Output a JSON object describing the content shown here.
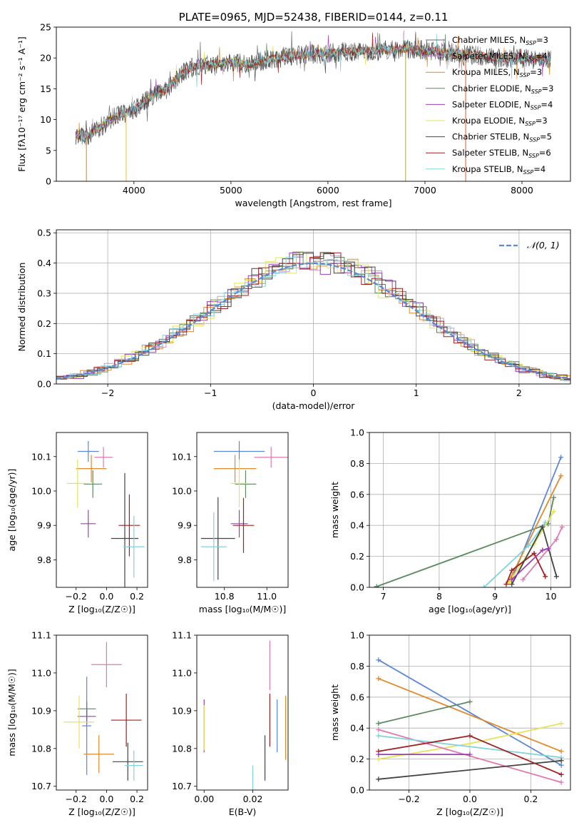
{
  "chart_data": [
    {
      "id": "spectrum",
      "type": "line",
      "title": "PLATE=0965, MJD=52438, FIBERID=0144, z=0.11",
      "xlabel": "wavelength [Angstrom, rest frame]",
      "ylabel": "Flux [fλ10⁻¹⁷ erg cm⁻² s⁻¹ A⁻¹]",
      "xlim": [
        3200,
        8500
      ],
      "ylim": [
        0,
        25
      ],
      "xticks": [
        4000,
        5000,
        6000,
        7000,
        8000
      ],
      "yticks": [
        0,
        5,
        10,
        15,
        20,
        25
      ],
      "legend": "right",
      "series": [
        {
          "name": "Chabrier MILES, N",
          "sub": "SSP",
          "suffix": "=3",
          "color": "#6b6b6b"
        },
        {
          "name": "Salpeter MILES, N",
          "sub": "SSP",
          "suffix": "=4",
          "color": "#c89ad2"
        },
        {
          "name": "Kroupa MILES, N",
          "sub": "SSP",
          "suffix": "=3",
          "color": "#e08a2c"
        },
        {
          "name": "Chabrier ELODIE, N",
          "sub": "SSP",
          "suffix": "=3",
          "color": "#5a8a5e"
        },
        {
          "name": "Salpeter ELODIE, N",
          "sub": "SSP",
          "suffix": "=4",
          "color": "#9b3fb5"
        },
        {
          "name": "Kroupa ELODIE, N",
          "sub": "SSP",
          "suffix": "=3",
          "color": "#e6e35a"
        },
        {
          "name": "Chabrier STELIB, N",
          "sub": "SSP",
          "suffix": "=5",
          "color": "#444444"
        },
        {
          "name": "Salpeter STELIB, N",
          "sub": "SSP",
          "suffix": "=6",
          "color": "#a31f1f"
        },
        {
          "name": "Kroupa STELIB, N",
          "sub": "SSP",
          "suffix": "=4",
          "color": "#7fd3dc"
        }
      ],
      "profile": [
        [
          3400,
          7.5
        ],
        [
          3500,
          7.0
        ],
        [
          3600,
          8.2
        ],
        [
          3700,
          9.3
        ],
        [
          3800,
          10.5
        ],
        [
          3900,
          11.0
        ],
        [
          4000,
          11.5
        ],
        [
          4100,
          12.8
        ],
        [
          4200,
          14.0
        ],
        [
          4300,
          14.3
        ],
        [
          4400,
          16.0
        ],
        [
          4500,
          17.6
        ],
        [
          4600,
          18.5
        ],
        [
          4800,
          19.0
        ],
        [
          5000,
          19.3
        ],
        [
          5200,
          19.0
        ],
        [
          5400,
          19.8
        ],
        [
          5600,
          20.2
        ],
        [
          5800,
          20.6
        ],
        [
          6000,
          20.8
        ],
        [
          6200,
          21.0
        ],
        [
          6400,
          21.1
        ],
        [
          6600,
          21.3
        ],
        [
          6800,
          21.4
        ],
        [
          7000,
          21.3
        ],
        [
          7200,
          20.9
        ],
        [
          7400,
          20.6
        ],
        [
          7600,
          20.3
        ],
        [
          7800,
          20.0
        ],
        [
          8000,
          19.9
        ],
        [
          8200,
          19.8
        ],
        [
          8300,
          19.7
        ]
      ],
      "drops": [
        {
          "x": 3510,
          "color": "#e08a2c"
        },
        {
          "x": 3920,
          "color": "#e6c35a"
        },
        {
          "x": 6800,
          "color": "#b8b060"
        },
        {
          "x": 7420,
          "color": "#e06a3c"
        }
      ]
    },
    {
      "id": "residuals",
      "type": "step",
      "xlabel": "(data-model)/error",
      "ylabel": "Normed distribution",
      "xlim": [
        -2.5,
        2.5
      ],
      "ylim": [
        0,
        0.51
      ],
      "xticks": [
        -2,
        -1,
        0,
        1,
        2
      ],
      "yticks": [
        0.0,
        0.1,
        0.2,
        0.3,
        0.4,
        0.5
      ],
      "grid": true,
      "legend": {
        "label": "𝒩(0, 1)",
        "color": "#5b87d6",
        "placement": "top-right"
      },
      "bin_width": 0.1
    },
    {
      "id": "age-vs-z",
      "type": "errorbar",
      "xlabel": "Z [log₁₀(Z/Z☉)]",
      "ylabel": "age  [log₁₀(age/yr)]",
      "xlim": [
        -0.33,
        0.27
      ],
      "ylim": [
        9.72,
        10.17
      ],
      "xticks": [
        -0.2,
        0.0,
        0.2
      ],
      "yticks": [
        9.8,
        9.9,
        10.0,
        10.1
      ],
      "points": [
        {
          "x": -0.12,
          "y": 10.115,
          "xe": 0.07,
          "ye": 0.03,
          "color": "#5b87d6"
        },
        {
          "x": -0.02,
          "y": 10.098,
          "xe": 0.06,
          "ye": 0.03,
          "color": "#e07ab0"
        },
        {
          "x": -0.1,
          "y": 10.065,
          "xe": 0.1,
          "ye": 0.04,
          "color": "#e08a2c"
        },
        {
          "x": -0.09,
          "y": 10.02,
          "xe": 0.06,
          "ye": 0.04,
          "color": "#5a8a5e"
        },
        {
          "x": -0.19,
          "y": 10.022,
          "xe": 0.07,
          "ye": 0.07,
          "color": "#e6e35a"
        },
        {
          "x": -0.12,
          "y": 9.905,
          "xe": 0.05,
          "ye": 0.04,
          "color": "#9b3fb5"
        },
        {
          "x": 0.15,
          "y": 9.9,
          "xe": 0.07,
          "ye": 0.09,
          "color": "#a31f1f"
        },
        {
          "x": 0.12,
          "y": 9.862,
          "xe": 0.09,
          "ye": 0.19,
          "color": "#444444"
        },
        {
          "x": 0.18,
          "y": 9.838,
          "xe": 0.07,
          "ye": 0.09,
          "color": "#7fd3dc"
        }
      ]
    },
    {
      "id": "age-vs-mass",
      "type": "errorbar",
      "xlabel": "mass [log₁₀(M/M☉)]",
      "ylabel": "",
      "xlim": [
        10.67,
        11.1
      ],
      "ylim": [
        9.72,
        10.17
      ],
      "xticks": [
        10.8,
        11.0
      ],
      "yticks": [
        9.8,
        9.9,
        10.0,
        10.1
      ],
      "points": [
        {
          "x": 10.87,
          "y": 10.115,
          "xe": 0.12,
          "ye": 0.03,
          "color": "#5b87d6"
        },
        {
          "x": 11.02,
          "y": 10.098,
          "xe": 0.08,
          "ye": 0.03,
          "color": "#e07ab0"
        },
        {
          "x": 10.85,
          "y": 10.065,
          "xe": 0.1,
          "ye": 0.04,
          "color": "#e08a2c"
        },
        {
          "x": 10.9,
          "y": 10.02,
          "xe": 0.05,
          "ye": 0.04,
          "color": "#5a8a5e"
        },
        {
          "x": 10.87,
          "y": 10.022,
          "xe": 0.04,
          "ye": 0.07,
          "color": "#e6e35a"
        },
        {
          "x": 10.87,
          "y": 9.905,
          "xe": 0.04,
          "ye": 0.04,
          "color": "#9b3fb5"
        },
        {
          "x": 10.89,
          "y": 9.9,
          "xe": 0.05,
          "ye": 0.08,
          "color": "#a31f1f"
        },
        {
          "x": 10.77,
          "y": 9.862,
          "xe": 0.08,
          "ye": 0.12,
          "color": "#444444"
        },
        {
          "x": 10.75,
          "y": 9.838,
          "xe": 0.06,
          "ye": 0.1,
          "color": "#7fd3dc"
        }
      ]
    },
    {
      "id": "mass-weight-vs-age",
      "type": "line",
      "xlabel": "age  [log₁₀(age/yr)]",
      "ylabel": "mass weight",
      "xlim": [
        6.75,
        10.35
      ],
      "ylim": [
        0,
        1
      ],
      "xticks": [
        7,
        8,
        9,
        10
      ],
      "yticks": [
        0.0,
        0.2,
        0.4,
        0.6,
        0.8,
        1.0
      ],
      "grid": true,
      "series": [
        {
          "color": "#5a8a5e",
          "x": [
            6.88,
            9.95,
            10.05
          ],
          "y": [
            0.005,
            0.41,
            0.58
          ]
        },
        {
          "color": "#5b87d6",
          "x": [
            9.3,
            10.18
          ],
          "y": [
            0.05,
            0.84
          ]
        },
        {
          "color": "#e08a2c",
          "x": [
            9.25,
            10.18
          ],
          "y": [
            0.04,
            0.72
          ]
        },
        {
          "color": "#7fd3dc",
          "x": [
            8.8,
            9.6,
            9.9
          ],
          "y": [
            0.0,
            0.27,
            0.42
          ]
        },
        {
          "color": "#e6e35a",
          "x": [
            9.25,
            9.7,
            10.05
          ],
          "y": [
            0.03,
            0.28,
            0.49
          ]
        },
        {
          "color": "#e07ab0",
          "x": [
            9.5,
            10.1,
            10.2
          ],
          "y": [
            0.05,
            0.31,
            0.39
          ]
        },
        {
          "color": "#a31f1f",
          "x": [
            9.2,
            9.3,
            9.7,
            9.9
          ],
          "y": [
            0.02,
            0.11,
            0.22,
            0.07
          ]
        },
        {
          "color": "#444444",
          "x": [
            9.3,
            9.85,
            10.1
          ],
          "y": [
            0.02,
            0.39,
            0.07
          ]
        },
        {
          "color": "#9b3fb5",
          "x": [
            9.3,
            9.85,
            9.95
          ],
          "y": [
            0.05,
            0.24,
            0.25
          ]
        }
      ]
    },
    {
      "id": "mass-vs-z",
      "type": "errorbar",
      "xlabel": "Z [log₁₀(Z/Z☉)]",
      "ylabel": "mass [log₁₀(M/M☉)]",
      "xlim": [
        -0.33,
        0.27
      ],
      "ylim": [
        10.69,
        11.1
      ],
      "xticks": [
        -0.2,
        0.0,
        0.2
      ],
      "yticks": [
        10.7,
        10.8,
        10.9,
        11.0,
        11.1
      ],
      "points": [
        {
          "x": 0.0,
          "y": 11.022,
          "xe": 0.1,
          "ye": 0.06,
          "color": "#e07ab0"
        },
        {
          "x": -0.13,
          "y": 10.86,
          "xe": 0.03,
          "ye": 0.13,
          "color": "#5b87d6"
        },
        {
          "x": -0.13,
          "y": 10.905,
          "xe": 0.06,
          "ye": 0.02,
          "color": "#5a8a5e"
        },
        {
          "x": -0.13,
          "y": 10.885,
          "xe": 0.06,
          "ye": 0.02,
          "color": "#9b3fb5"
        },
        {
          "x": -0.18,
          "y": 10.87,
          "xe": 0.1,
          "ye": 0.07,
          "color": "#e6e35a"
        },
        {
          "x": 0.13,
          "y": 10.875,
          "xe": 0.1,
          "ye": 0.07,
          "color": "#a31f1f"
        },
        {
          "x": -0.05,
          "y": 10.785,
          "xe": 0.1,
          "ye": 0.05,
          "color": "#e08a2c"
        },
        {
          "x": 0.14,
          "y": 10.765,
          "xe": 0.1,
          "ye": 0.05,
          "color": "#444444"
        },
        {
          "x": 0.18,
          "y": 10.755,
          "xe": 0.06,
          "ye": 0.04,
          "color": "#7fd3dc"
        }
      ]
    },
    {
      "id": "mass-vs-ebv",
      "type": "errorbar",
      "xlabel": "E(B-V)",
      "ylabel": "",
      "xlim": [
        -0.003,
        0.0345
      ],
      "ylim": [
        10.69,
        11.1
      ],
      "xticks": [
        0.0,
        0.02
      ],
      "yticks": [
        10.7,
        10.8,
        10.9,
        11.0,
        11.1
      ],
      "points": [
        {
          "x": 0.0,
          "y": 10.86,
          "xe": 0.0,
          "ye": 0.07,
          "color": "#9b3fb5"
        },
        {
          "x": 0.0,
          "y": 10.855,
          "xe": 0.0,
          "ye": 0.06,
          "color": "#e6e35a"
        },
        {
          "x": 0.02,
          "y": 10.72,
          "xe": 0.0,
          "ye": 0.035,
          "color": "#7fd3dc"
        },
        {
          "x": 0.025,
          "y": 10.775,
          "xe": 0.0,
          "ye": 0.06,
          "color": "#444444"
        },
        {
          "x": 0.027,
          "y": 10.875,
          "xe": 0.0,
          "ye": 0.07,
          "color": "#a31f1f"
        },
        {
          "x": 0.027,
          "y": 11.02,
          "xe": 0.0,
          "ye": 0.065,
          "color": "#e07ab0"
        },
        {
          "x": 0.03,
          "y": 10.86,
          "xe": 0.0,
          "ye": 0.07,
          "color": "#5b87d6"
        },
        {
          "x": 0.0335,
          "y": 10.855,
          "xe": 0.0,
          "ye": 0.085,
          "color": "#e08a2c"
        }
      ]
    },
    {
      "id": "mass-weight-vs-z",
      "type": "line",
      "xlabel": "Z [log₁₀(Z/Z☉)]",
      "ylabel": "mass weight",
      "xlim": [
        -0.33,
        0.33
      ],
      "ylim": [
        0,
        1
      ],
      "xticks": [
        -0.2,
        0.0,
        0.2
      ],
      "yticks": [
        0.0,
        0.2,
        0.4,
        0.6,
        0.8,
        1.0
      ],
      "grid": true,
      "series": [
        {
          "color": "#5b87d6",
          "x": [
            -0.3,
            0.3
          ],
          "y": [
            0.84,
            0.16
          ]
        },
        {
          "color": "#e08a2c",
          "x": [
            -0.3,
            0.3
          ],
          "y": [
            0.72,
            0.25
          ]
        },
        {
          "color": "#5a8a5e",
          "x": [
            -0.3,
            0.0
          ],
          "y": [
            0.43,
            0.57
          ]
        },
        {
          "color": "#e6e35a",
          "x": [
            -0.3,
            0.0,
            0.3
          ],
          "y": [
            0.2,
            0.3,
            0.43
          ]
        },
        {
          "color": "#e07ab0",
          "x": [
            -0.3,
            0.3
          ],
          "y": [
            0.39,
            0.05
          ]
        },
        {
          "color": "#7fd3dc",
          "x": [
            -0.3,
            0.3
          ],
          "y": [
            0.35,
            0.21
          ]
        },
        {
          "color": "#a31f1f",
          "x": [
            -0.3,
            0.0,
            0.3
          ],
          "y": [
            0.25,
            0.35,
            0.1
          ]
        },
        {
          "color": "#9b3fb5",
          "x": [
            -0.3,
            0.0
          ],
          "y": [
            0.23,
            0.23
          ]
        },
        {
          "color": "#444444",
          "x": [
            -0.3,
            0.3
          ],
          "y": [
            0.07,
            0.19
          ]
        }
      ]
    }
  ]
}
